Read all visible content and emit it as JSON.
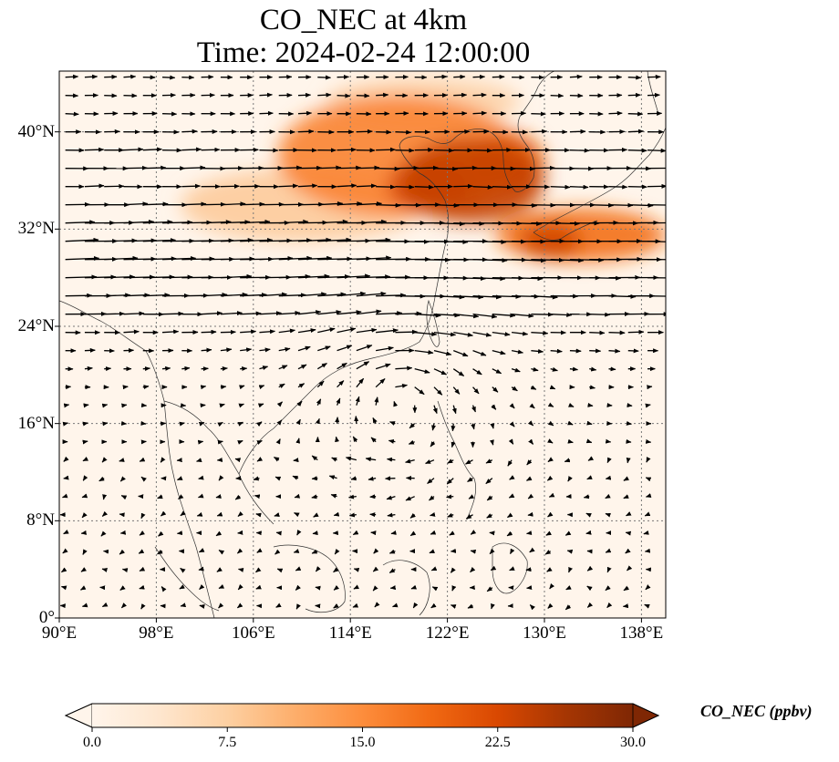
{
  "title": {
    "line1": "CO_NEC at 4km",
    "line2": "Time: 2024-02-24 12:00:00"
  },
  "map": {
    "lon_range": [
      90,
      140
    ],
    "lat_range": [
      0,
      45
    ],
    "lon_ticks": [
      {
        "value": 90,
        "label": "90°E"
      },
      {
        "value": 98,
        "label": "98°E"
      },
      {
        "value": 106,
        "label": "106°E"
      },
      {
        "value": 114,
        "label": "114°E"
      },
      {
        "value": 122,
        "label": "122°E"
      },
      {
        "value": 130,
        "label": "130°E"
      },
      {
        "value": 138,
        "label": "138°E"
      }
    ],
    "lat_ticks": [
      {
        "value": 0,
        "label": "0°"
      },
      {
        "value": 8,
        "label": "8°N"
      },
      {
        "value": 16,
        "label": "16°N"
      },
      {
        "value": 24,
        "label": "24°N"
      },
      {
        "value": 32,
        "label": "32°N"
      },
      {
        "value": 40,
        "label": "40°N"
      }
    ],
    "gridlines": true,
    "background_color": "#fff5eb",
    "plumes": [
      {
        "lon": 118,
        "lat": 38,
        "rlon": 10,
        "rlat": 5,
        "value": 16
      },
      {
        "lon": 124,
        "lat": 36,
        "rlon": 6,
        "rlat": 3.5,
        "value": 24
      },
      {
        "lon": 120.5,
        "lat": 35.5,
        "rlon": 3.5,
        "rlat": 2.2,
        "value": 22
      },
      {
        "lon": 127,
        "lat": 37.5,
        "rlon": 3,
        "rlat": 2.5,
        "value": 20
      },
      {
        "lon": 133,
        "lat": 31.5,
        "rlon": 7,
        "rlat": 2.2,
        "value": 18
      },
      {
        "lon": 110,
        "lat": 34,
        "rlon": 10,
        "rlat": 3,
        "value": 8
      },
      {
        "lon": 120,
        "lat": 42.5,
        "rlon": 8,
        "rlat": 2,
        "value": 7
      },
      {
        "lon": 130.5,
        "lat": 31,
        "rlon": 2.5,
        "rlat": 1.5,
        "value": 23
      }
    ],
    "wind": {
      "description": "westerly jet 24-35N with anticyclone centred near 118E 18N",
      "jet_center_lat": 30,
      "anticyclone_center": [
        118,
        18
      ]
    }
  },
  "colorbar": {
    "label": "CO_NEC (ppbv)",
    "min": 0,
    "max": 30,
    "extend": "both",
    "ticks": [
      {
        "value": 0,
        "label": "0.0"
      },
      {
        "value": 7.5,
        "label": "7.5"
      },
      {
        "value": 15,
        "label": "15.0"
      },
      {
        "value": 22.5,
        "label": "22.5"
      },
      {
        "value": 30,
        "label": "30.0"
      }
    ],
    "colormap_stops": [
      "#fff5eb",
      "#fee6ce",
      "#fdd0a2",
      "#fdae6b",
      "#fd8d3c",
      "#f16913",
      "#d94801",
      "#a63603",
      "#7f2704"
    ]
  }
}
